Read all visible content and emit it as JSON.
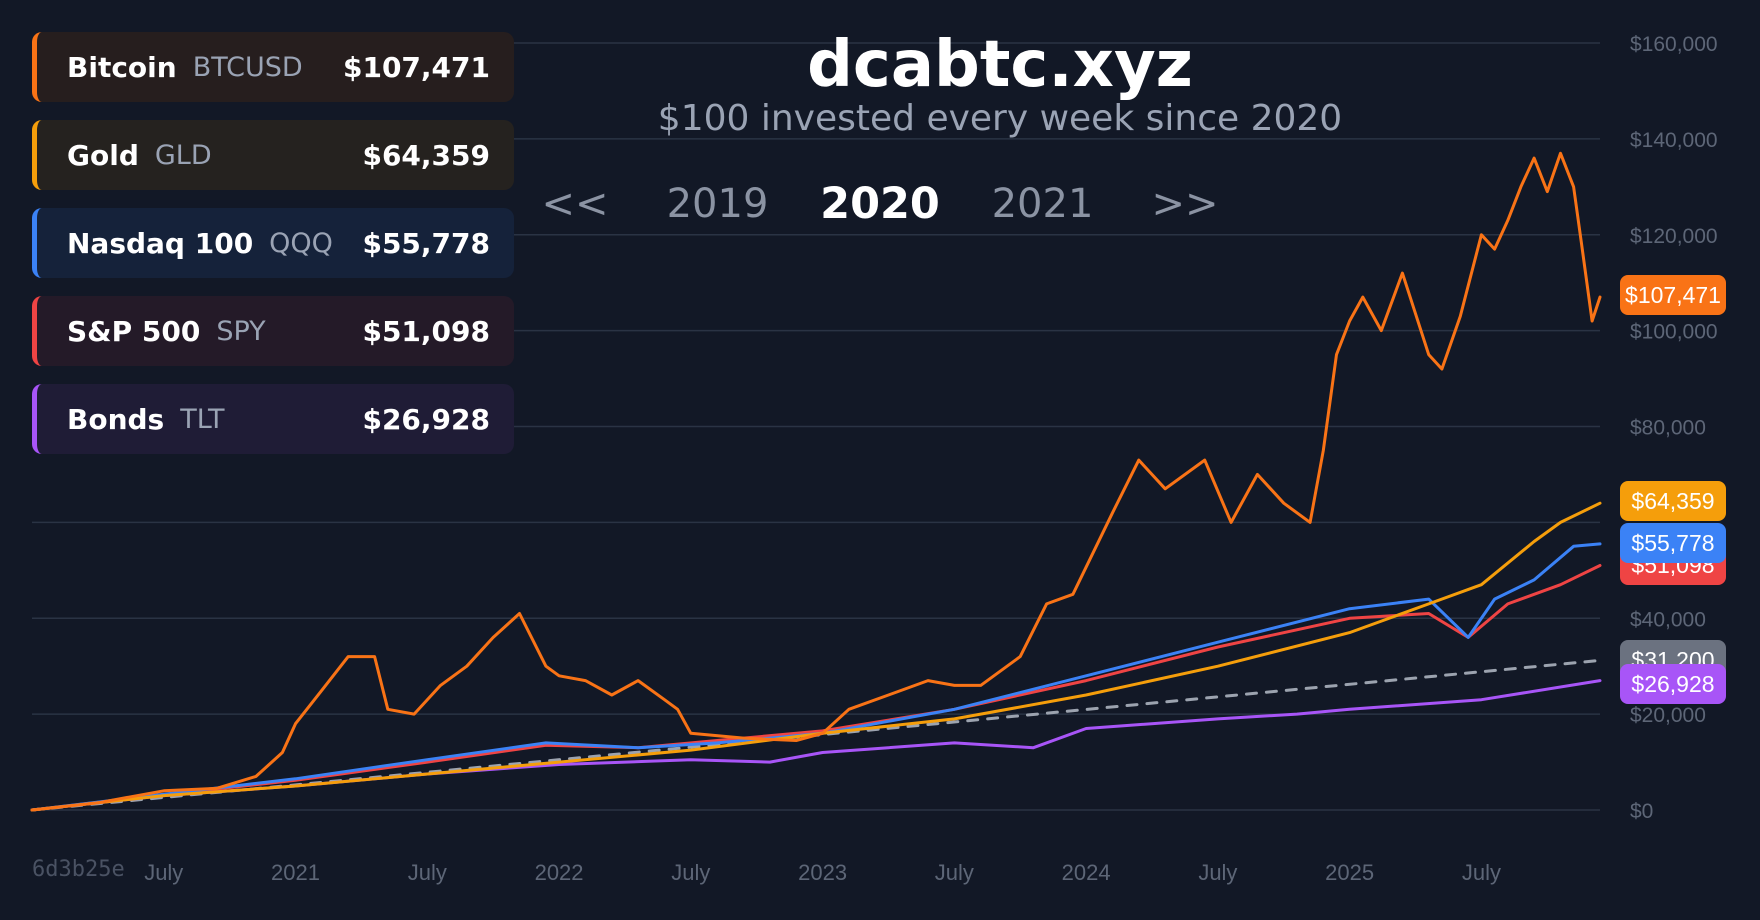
{
  "header": {
    "title": "dcabtc.xyz",
    "subtitle": "$100 invested every week since 2020"
  },
  "year_nav": {
    "prev_label": "<<",
    "next_label": ">>",
    "prev_year": "2019",
    "current_year": "2020",
    "next_year": "2021"
  },
  "legend": [
    {
      "name": "Bitcoin",
      "ticker": "BTCUSD",
      "value": "$107,471",
      "color": "#f97316",
      "bg": "#261e1e"
    },
    {
      "name": "Gold",
      "ticker": "GLD",
      "value": "$64,359",
      "color": "#f59e0b",
      "bg": "#25221f"
    },
    {
      "name": "Nasdaq 100",
      "ticker": "QQQ",
      "value": "$55,778",
      "color": "#3b82f6",
      "bg": "#15223a"
    },
    {
      "name": "S&P 500",
      "ticker": "SPY",
      "value": "$51,098",
      "color": "#ef4444",
      "bg": "#241a28"
    },
    {
      "name": "Bonds",
      "ticker": "TLT",
      "value": "$26,928",
      "color": "#a855f7",
      "bg": "#1f1c36"
    }
  ],
  "end_labels": {
    "btc": "$107,471",
    "gld": "$64,359",
    "qqq": "$55,778",
    "spy": "$51,098",
    "invested": "$31,200",
    "tlt": "$26,928"
  },
  "footer": {
    "commit": "6d3b25e"
  },
  "colors": {
    "background": "#121826",
    "grid": "#2a3344",
    "axis_text": "#5d6677",
    "invested_line": "#9ca3af"
  },
  "chart_data": {
    "type": "line",
    "title": "dcabtc.xyz",
    "subtitle": "$100 invested every week since 2020",
    "ylim": [
      0,
      160000
    ],
    "xlim": [
      2020.0,
      2025.95
    ],
    "y_ticks": [
      0,
      20000,
      40000,
      60000,
      80000,
      100000,
      120000,
      140000,
      160000
    ],
    "y_tick_labels": [
      "$0",
      "$20,000",
      "$40,000",
      "",
      "$80,000",
      "$100,000",
      "$120,000",
      "$140,000",
      "$160,000"
    ],
    "x_ticks": [
      {
        "x": 2020.5,
        "label": "July"
      },
      {
        "x": 2021.0,
        "label": "2021"
      },
      {
        "x": 2021.5,
        "label": "July"
      },
      {
        "x": 2022.0,
        "label": "2022"
      },
      {
        "x": 2022.5,
        "label": "July"
      },
      {
        "x": 2023.0,
        "label": "2023"
      },
      {
        "x": 2023.5,
        "label": "July"
      },
      {
        "x": 2024.0,
        "label": "2024"
      },
      {
        "x": 2024.5,
        "label": "July"
      },
      {
        "x": 2025.0,
        "label": "2025"
      },
      {
        "x": 2025.5,
        "label": "July"
      }
    ],
    "grid": true,
    "series": [
      {
        "name": "Bitcoin",
        "color": "#f97316",
        "width": 3,
        "points": [
          [
            2020.0,
            0
          ],
          [
            2020.25,
            1500
          ],
          [
            2020.5,
            4000
          ],
          [
            2020.7,
            4500
          ],
          [
            2020.85,
            7000
          ],
          [
            2020.95,
            12000
          ],
          [
            2021.0,
            18000
          ],
          [
            2021.1,
            25000
          ],
          [
            2021.2,
            32000
          ],
          [
            2021.3,
            32000
          ],
          [
            2021.35,
            21000
          ],
          [
            2021.45,
            20000
          ],
          [
            2021.55,
            26000
          ],
          [
            2021.65,
            30000
          ],
          [
            2021.75,
            36000
          ],
          [
            2021.85,
            41000
          ],
          [
            2021.95,
            30000
          ],
          [
            2022.0,
            28000
          ],
          [
            2022.1,
            27000
          ],
          [
            2022.2,
            24000
          ],
          [
            2022.3,
            27000
          ],
          [
            2022.4,
            23000
          ],
          [
            2022.45,
            21000
          ],
          [
            2022.5,
            16000
          ],
          [
            2022.7,
            15000
          ],
          [
            2022.9,
            14500
          ],
          [
            2023.0,
            16000
          ],
          [
            2023.1,
            21000
          ],
          [
            2023.25,
            24000
          ],
          [
            2023.4,
            27000
          ],
          [
            2023.5,
            26000
          ],
          [
            2023.6,
            26000
          ],
          [
            2023.75,
            32000
          ],
          [
            2023.85,
            43000
          ],
          [
            2023.95,
            45000
          ],
          [
            2024.1,
            62000
          ],
          [
            2024.2,
            73000
          ],
          [
            2024.3,
            67000
          ],
          [
            2024.45,
            73000
          ],
          [
            2024.55,
            60000
          ],
          [
            2024.65,
            70000
          ],
          [
            2024.75,
            64000
          ],
          [
            2024.85,
            60000
          ],
          [
            2024.9,
            75000
          ],
          [
            2024.95,
            95000
          ],
          [
            2025.0,
            102000
          ],
          [
            2025.05,
            107000
          ],
          [
            2025.12,
            100000
          ],
          [
            2025.2,
            112000
          ],
          [
            2025.3,
            95000
          ],
          [
            2025.35,
            92000
          ],
          [
            2025.42,
            103000
          ],
          [
            2025.5,
            120000
          ],
          [
            2025.55,
            117000
          ],
          [
            2025.6,
            123000
          ],
          [
            2025.65,
            130000
          ],
          [
            2025.7,
            136000
          ],
          [
            2025.75,
            129000
          ],
          [
            2025.8,
            137000
          ],
          [
            2025.85,
            130000
          ],
          [
            2025.88,
            118000
          ],
          [
            2025.92,
            102000
          ],
          [
            2025.95,
            107000
          ]
        ]
      },
      {
        "name": "Gold",
        "color": "#f59e0b",
        "width": 3,
        "points": [
          [
            2020.0,
            0
          ],
          [
            2020.5,
            3000
          ],
          [
            2021.0,
            5000
          ],
          [
            2021.5,
            7500
          ],
          [
            2022.0,
            10000
          ],
          [
            2022.5,
            12500
          ],
          [
            2023.0,
            16000
          ],
          [
            2023.5,
            19000
          ],
          [
            2024.0,
            24000
          ],
          [
            2024.5,
            30000
          ],
          [
            2025.0,
            37000
          ],
          [
            2025.3,
            43000
          ],
          [
            2025.5,
            47000
          ],
          [
            2025.7,
            56000
          ],
          [
            2025.8,
            60000
          ],
          [
            2025.95,
            64000
          ]
        ]
      },
      {
        "name": "Nasdaq 100",
        "color": "#3b82f6",
        "width": 3,
        "points": [
          [
            2020.0,
            0
          ],
          [
            2020.5,
            3300
          ],
          [
            2021.0,
            6500
          ],
          [
            2021.5,
            10500
          ],
          [
            2021.95,
            14000
          ],
          [
            2022.3,
            13000
          ],
          [
            2022.6,
            14000
          ],
          [
            2023.0,
            16000
          ],
          [
            2023.5,
            21000
          ],
          [
            2024.0,
            28000
          ],
          [
            2024.5,
            35000
          ],
          [
            2025.0,
            42000
          ],
          [
            2025.3,
            44000
          ],
          [
            2025.45,
            36000
          ],
          [
            2025.55,
            44000
          ],
          [
            2025.7,
            48000
          ],
          [
            2025.85,
            55000
          ],
          [
            2025.95,
            55500
          ]
        ]
      },
      {
        "name": "S&P 500",
        "color": "#ef4444",
        "width": 3,
        "points": [
          [
            2020.0,
            0
          ],
          [
            2020.5,
            3200
          ],
          [
            2021.0,
            6200
          ],
          [
            2021.5,
            10000
          ],
          [
            2021.95,
            13500
          ],
          [
            2022.3,
            13000
          ],
          [
            2022.6,
            14500
          ],
          [
            2023.0,
            16500
          ],
          [
            2023.5,
            21000
          ],
          [
            2024.0,
            27000
          ],
          [
            2024.5,
            34000
          ],
          [
            2025.0,
            40000
          ],
          [
            2025.3,
            41000
          ],
          [
            2025.45,
            36000
          ],
          [
            2025.6,
            43000
          ],
          [
            2025.8,
            47000
          ],
          [
            2025.95,
            51000
          ]
        ]
      },
      {
        "name": "Bonds",
        "color": "#a855f7",
        "width": 3,
        "points": [
          [
            2020.0,
            0
          ],
          [
            2020.5,
            3000
          ],
          [
            2021.0,
            5000
          ],
          [
            2021.5,
            7500
          ],
          [
            2022.0,
            9500
          ],
          [
            2022.5,
            10500
          ],
          [
            2022.8,
            10000
          ],
          [
            2023.0,
            12000
          ],
          [
            2023.5,
            14000
          ],
          [
            2023.8,
            13000
          ],
          [
            2024.0,
            17000
          ],
          [
            2024.5,
            19000
          ],
          [
            2024.8,
            20000
          ],
          [
            2025.0,
            21000
          ],
          [
            2025.5,
            23000
          ],
          [
            2025.95,
            27000
          ]
        ]
      },
      {
        "name": "Invested",
        "color": "#9ca3af",
        "width": 3,
        "dashed": true,
        "points": [
          [
            2020.0,
            0
          ],
          [
            2025.95,
            31200
          ]
        ]
      }
    ]
  }
}
